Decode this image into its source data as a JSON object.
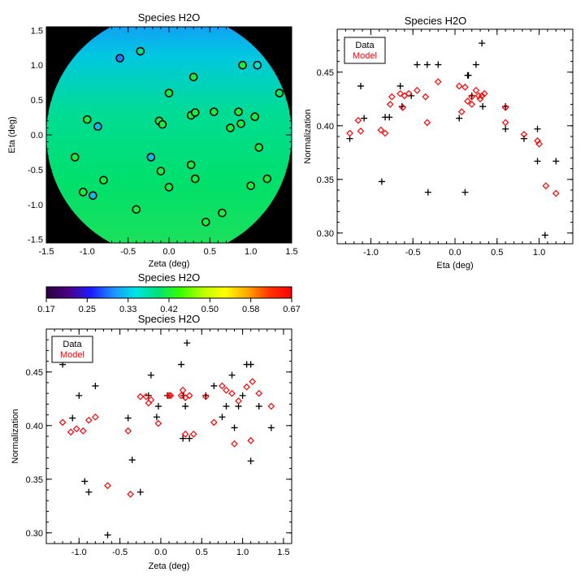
{
  "chart_data": [
    {
      "type": "scatter",
      "title": "Species H2O",
      "xlabel": "Zeta (deg)",
      "ylabel": "Eta (deg)",
      "xlim": [
        -1.5,
        1.5
      ],
      "ylim": [
        -1.55,
        1.55
      ],
      "xticks": [
        "-1.5",
        "-1.0",
        "-0.5",
        "0.0",
        "0.5",
        "1.0",
        "1.5"
      ],
      "yticks": [
        "-1.5",
        "-1.0",
        "-0.5",
        "0.0",
        "0.5",
        "1.0",
        "1.5"
      ],
      "background": "disk colormap of modeled normalization (cyan-blue at top to green at bottom), black outside the field",
      "points": [
        {
          "x": -0.6,
          "y": 1.1,
          "v": 0.3
        },
        {
          "x": -0.35,
          "y": 1.2,
          "v": 0.39
        },
        {
          "x": 0.3,
          "y": 0.83,
          "v": 0.42
        },
        {
          "x": 0.9,
          "y": 1.0,
          "v": 0.42
        },
        {
          "x": 1.08,
          "y": 1.0,
          "v": 0.36
        },
        {
          "x": 1.35,
          "y": 0.6,
          "v": 0.41
        },
        {
          "x": 0.0,
          "y": 0.6,
          "v": 0.42
        },
        {
          "x": -1.0,
          "y": 0.22,
          "v": 0.42
        },
        {
          "x": -0.87,
          "y": 0.12,
          "v": 0.33
        },
        {
          "x": -0.12,
          "y": 0.2,
          "v": 0.42
        },
        {
          "x": -0.08,
          "y": 0.15,
          "v": 0.42
        },
        {
          "x": 0.27,
          "y": 0.28,
          "v": 0.42
        },
        {
          "x": 0.32,
          "y": 0.32,
          "v": 0.42
        },
        {
          "x": 0.55,
          "y": 0.33,
          "v": 0.42
        },
        {
          "x": 0.75,
          "y": 0.1,
          "v": 0.42
        },
        {
          "x": 0.85,
          "y": 0.33,
          "v": 0.42
        },
        {
          "x": 0.88,
          "y": 0.16,
          "v": 0.42
        },
        {
          "x": 1.05,
          "y": 0.26,
          "v": 0.42
        },
        {
          "x": 1.1,
          "y": -0.18,
          "v": 0.42
        },
        {
          "x": 1.2,
          "y": -0.63,
          "v": 0.42
        },
        {
          "x": -1.15,
          "y": -0.32,
          "v": 0.42
        },
        {
          "x": -0.22,
          "y": -0.32,
          "v": 0.33
        },
        {
          "x": -1.05,
          "y": -0.82,
          "v": 0.42
        },
        {
          "x": -0.93,
          "y": -0.87,
          "v": 0.33
        },
        {
          "x": -0.8,
          "y": -0.65,
          "v": 0.42
        },
        {
          "x": -0.1,
          "y": -0.52,
          "v": 0.42
        },
        {
          "x": 0.27,
          "y": -0.43,
          "v": 0.42
        },
        {
          "x": 0.32,
          "y": -0.63,
          "v": 0.42
        },
        {
          "x": 0.0,
          "y": -0.75,
          "v": 0.42
        },
        {
          "x": 1.0,
          "y": -0.73,
          "v": 0.42
        },
        {
          "x": -0.4,
          "y": -1.07,
          "v": 0.42
        },
        {
          "x": 0.65,
          "y": -1.12,
          "v": 0.42
        },
        {
          "x": 0.45,
          "y": -1.25,
          "v": 0.42
        }
      ]
    },
    {
      "type": "scatter",
      "title": "Species H2O",
      "xlabel": "Eta (deg)",
      "ylabel": "Normalization",
      "xlim": [
        -1.4,
        1.4
      ],
      "ylim": [
        0.29,
        0.49
      ],
      "xticks": [
        "-1.0",
        "-0.5",
        "0.0",
        "0.5",
        "1.0"
      ],
      "yticks": [
        "0.30",
        "0.35",
        "0.40",
        "0.45"
      ],
      "legend": {
        "position": "top-left",
        "entries": [
          "Data",
          "Model"
        ]
      },
      "series": [
        {
          "name": "Data",
          "marker": "plus",
          "points": [
            [
              -1.25,
              0.388
            ],
            [
              -1.12,
              0.437
            ],
            [
              -1.08,
              0.407
            ],
            [
              -0.87,
              0.348
            ],
            [
              -0.83,
              0.408
            ],
            [
              -0.78,
              0.408
            ],
            [
              -0.65,
              0.437
            ],
            [
              -0.63,
              0.418
            ],
            [
              -0.52,
              0.428
            ],
            [
              -0.45,
              0.457
            ],
            [
              -0.33,
              0.457
            ],
            [
              -0.32,
              0.338
            ],
            [
              -0.2,
              0.457
            ],
            [
              0.05,
              0.407
            ],
            [
              0.12,
              0.338
            ],
            [
              0.15,
              0.447
            ],
            [
              0.16,
              0.447
            ],
            [
              0.2,
              0.428
            ],
            [
              0.25,
              0.457
            ],
            [
              0.32,
              0.477
            ],
            [
              0.33,
              0.418
            ],
            [
              0.6,
              0.418
            ],
            [
              0.6,
              0.397
            ],
            [
              0.82,
              0.388
            ],
            [
              0.98,
              0.397
            ],
            [
              0.98,
              0.367
            ],
            [
              1.07,
              0.298
            ],
            [
              1.2,
              0.367
            ]
          ]
        },
        {
          "name": "Model",
          "marker": "diamond",
          "points": [
            [
              -1.25,
              0.393
            ],
            [
              -1.15,
              0.405
            ],
            [
              -1.12,
              0.395
            ],
            [
              -0.88,
              0.396
            ],
            [
              -0.83,
              0.393
            ],
            [
              -0.77,
              0.42
            ],
            [
              -0.75,
              0.427
            ],
            [
              -0.65,
              0.43
            ],
            [
              -0.62,
              0.417
            ],
            [
              -0.6,
              0.428
            ],
            [
              -0.55,
              0.43
            ],
            [
              -0.45,
              0.433
            ],
            [
              -0.35,
              0.427
            ],
            [
              -0.33,
              0.403
            ],
            [
              -0.2,
              0.441
            ],
            [
              0.05,
              0.437
            ],
            [
              0.08,
              0.413
            ],
            [
              0.12,
              0.436
            ],
            [
              0.15,
              0.423
            ],
            [
              0.2,
              0.42
            ],
            [
              0.2,
              0.427
            ],
            [
              0.25,
              0.433
            ],
            [
              0.28,
              0.428
            ],
            [
              0.3,
              0.425
            ],
            [
              0.32,
              0.428
            ],
            [
              0.35,
              0.43
            ],
            [
              0.6,
              0.417
            ],
            [
              0.6,
              0.403
            ],
            [
              0.82,
              0.392
            ],
            [
              0.98,
              0.386
            ],
            [
              1.0,
              0.383
            ],
            [
              1.08,
              0.344
            ],
            [
              1.2,
              0.337
            ]
          ]
        }
      ]
    },
    {
      "type": "colorbar",
      "title": "Species H2O",
      "vmin": 0.17,
      "vmax": 0.67,
      "ticks": [
        "0.17",
        "0.25",
        "0.33",
        "0.42",
        "0.50",
        "0.58",
        "0.67"
      ],
      "colormap": [
        "#2a0040",
        "#4b0082",
        "#1b1bff",
        "#1e90ff",
        "#00e5e5",
        "#00e07a",
        "#33ff00",
        "#b5ff00",
        "#ffff00",
        "#ffaa00",
        "#ff3300",
        "#ff0000"
      ]
    },
    {
      "type": "scatter",
      "title": "Species H2O",
      "xlabel": "Zeta (deg)",
      "ylabel": "Normalization",
      "xlim": [
        -1.4,
        1.6
      ],
      "ylim": [
        0.29,
        0.49
      ],
      "xticks": [
        "-1.0",
        "-0.5",
        "0.0",
        "0.5",
        "1.0",
        "1.5"
      ],
      "yticks": [
        "0.30",
        "0.35",
        "0.40",
        "0.45"
      ],
      "legend": {
        "position": "top-left",
        "entries": [
          "Data",
          "Model"
        ]
      },
      "series": [
        {
          "name": "Data",
          "marker": "plus",
          "points": [
            [
              -1.2,
              0.457
            ],
            [
              -1.08,
              0.407
            ],
            [
              -1.0,
              0.428
            ],
            [
              -0.93,
              0.348
            ],
            [
              -0.88,
              0.338
            ],
            [
              -0.8,
              0.437
            ],
            [
              -0.4,
              0.407
            ],
            [
              -0.35,
              0.368
            ],
            [
              -0.65,
              0.298
            ],
            [
              -0.25,
              0.338
            ],
            [
              -0.15,
              0.428
            ],
            [
              -0.12,
              0.447
            ],
            [
              -0.05,
              0.408
            ],
            [
              -0.03,
              0.418
            ],
            [
              0.08,
              0.428
            ],
            [
              0.25,
              0.457
            ],
            [
              0.27,
              0.388
            ],
            [
              0.28,
              0.428
            ],
            [
              0.3,
              0.418
            ],
            [
              0.32,
              0.477
            ],
            [
              0.35,
              0.388
            ],
            [
              0.55,
              0.428
            ],
            [
              0.65,
              0.437
            ],
            [
              0.75,
              0.408
            ],
            [
              0.8,
              0.418
            ],
            [
              0.87,
              0.447
            ],
            [
              0.9,
              0.398
            ],
            [
              0.95,
              0.418
            ],
            [
              1.0,
              0.428
            ],
            [
              1.05,
              0.457
            ],
            [
              1.1,
              0.457
            ],
            [
              1.1,
              0.367
            ],
            [
              1.2,
              0.418
            ],
            [
              1.35,
              0.398
            ]
          ]
        },
        {
          "name": "Model",
          "marker": "diamond",
          "points": [
            [
              -1.2,
              0.403
            ],
            [
              -1.1,
              0.394
            ],
            [
              -1.03,
              0.397
            ],
            [
              -0.95,
              0.395
            ],
            [
              -0.88,
              0.405
            ],
            [
              -0.8,
              0.408
            ],
            [
              -0.65,
              0.344
            ],
            [
              -0.4,
              0.395
            ],
            [
              -0.37,
              0.336
            ],
            [
              -0.25,
              0.427
            ],
            [
              -0.18,
              0.427
            ],
            [
              -0.15,
              0.421
            ],
            [
              -0.12,
              0.424
            ],
            [
              -0.03,
              0.402
            ],
            [
              0.1,
              0.428
            ],
            [
              0.12,
              0.428
            ],
            [
              0.25,
              0.428
            ],
            [
              0.27,
              0.433
            ],
            [
              0.3,
              0.426
            ],
            [
              0.3,
              0.392
            ],
            [
              0.35,
              0.428
            ],
            [
              0.4,
              0.392
            ],
            [
              0.55,
              0.427
            ],
            [
              0.65,
              0.403
            ],
            [
              0.75,
              0.437
            ],
            [
              0.8,
              0.433
            ],
            [
              0.87,
              0.43
            ],
            [
              0.9,
              0.383
            ],
            [
              0.95,
              0.423
            ],
            [
              1.05,
              0.436
            ],
            [
              1.1,
              0.386
            ],
            [
              1.12,
              0.441
            ],
            [
              1.2,
              0.43
            ],
            [
              1.35,
              0.418
            ]
          ]
        }
      ]
    }
  ]
}
